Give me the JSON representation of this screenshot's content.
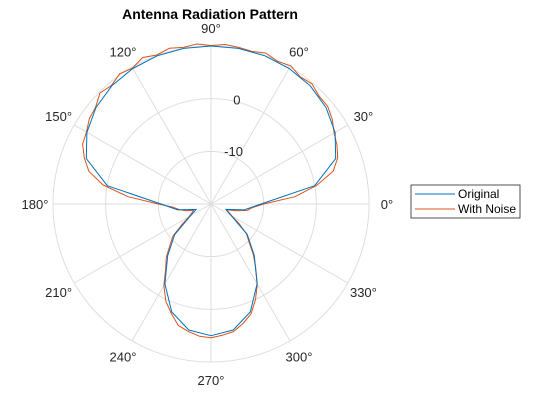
{
  "chart_data": {
    "type": "polar-line",
    "title": "Antenna Radiation Pattern",
    "theta_unit": "deg",
    "theta_ticks": [
      0,
      30,
      60,
      90,
      120,
      150,
      180,
      210,
      240,
      270,
      300,
      330
    ],
    "theta_tick_labels": [
      "0°",
      "30°",
      "60°",
      "90°",
      "120°",
      "150°",
      "180°",
      "210°",
      "240°",
      "270°",
      "300°",
      "330°"
    ],
    "rlim": [
      -20,
      10
    ],
    "r_ticks": [
      -10,
      0
    ],
    "r_tick_labels": [
      "-10",
      "0"
    ],
    "r_label_angle_deg": 80,
    "grid": true,
    "legend_location": "right",
    "series": [
      {
        "name": "Original",
        "color": "#0072BD",
        "theta": [
          0,
          10,
          20,
          30,
          40,
          50,
          60,
          70,
          80,
          90,
          100,
          110,
          120,
          130,
          140,
          150,
          160,
          170,
          180,
          190,
          200,
          210,
          220,
          230,
          240,
          250,
          260,
          270,
          280,
          290,
          300,
          310,
          320,
          330,
          340,
          350,
          360
        ],
        "r": [
          -10.5,
          0.0,
          5.2,
          7.2,
          8.5,
          9.3,
          9.7,
          9.95,
          10.0,
          10.0,
          10.0,
          9.95,
          9.7,
          9.3,
          8.5,
          7.2,
          5.2,
          0.0,
          -10.5,
          -13.6,
          -17.0,
          -15.5,
          -11.0,
          -7.2,
          -2.5,
          1.8,
          4.3,
          5.0,
          4.3,
          1.8,
          -2.5,
          -7.2,
          -11.0,
          -15.5,
          -17.0,
          -13.6,
          -10.5
        ]
      },
      {
        "name": "With Noise",
        "color": "#D95319",
        "theta": [
          0,
          5,
          10,
          15,
          20,
          25,
          30,
          35,
          40,
          45,
          50,
          55,
          60,
          65,
          70,
          75,
          80,
          85,
          90,
          95,
          100,
          105,
          110,
          115,
          120,
          125,
          130,
          135,
          140,
          145,
          150,
          155,
          160,
          165,
          170,
          175,
          180,
          185,
          190,
          195,
          200,
          205,
          210,
          215,
          220,
          225,
          230,
          235,
          240,
          245,
          250,
          255,
          260,
          265,
          270,
          275,
          280,
          285,
          290,
          295,
          300,
          305,
          310,
          315,
          320,
          325,
          330,
          335,
          340,
          345,
          350,
          355,
          360
        ],
        "r": [
          -10.0,
          -4.0,
          0.4,
          4.0,
          5.6,
          6.4,
          7.0,
          8.1,
          8.9,
          9.0,
          9.8,
          9.5,
          10.3,
          9.9,
          10.5,
          10.0,
          10.2,
          10.4,
          10.1,
          10.5,
          10.2,
          10.6,
          10.1,
          10.7,
          9.8,
          10.2,
          9.4,
          9.8,
          8.6,
          8.2,
          7.3,
          6.9,
          5.6,
          4.0,
          0.8,
          -4.2,
          -10.0,
          -12.8,
          -13.9,
          -15.0,
          -16.5,
          -16.0,
          -15.2,
          -13.4,
          -10.6,
          -9.0,
          -6.8,
          -5.0,
          -2.1,
          0.3,
          2.1,
          3.9,
          4.6,
          5.2,
          5.4,
          5.0,
          4.6,
          3.5,
          2.2,
          0.0,
          -2.4,
          -5.2,
          -7.5,
          -9.8,
          -11.2,
          -13.5,
          -15.4,
          -16.3,
          -16.8,
          -15.1,
          -13.0,
          -12.1,
          -10.0
        ]
      }
    ]
  },
  "legend": {
    "items": [
      "Original",
      "With Noise"
    ]
  }
}
